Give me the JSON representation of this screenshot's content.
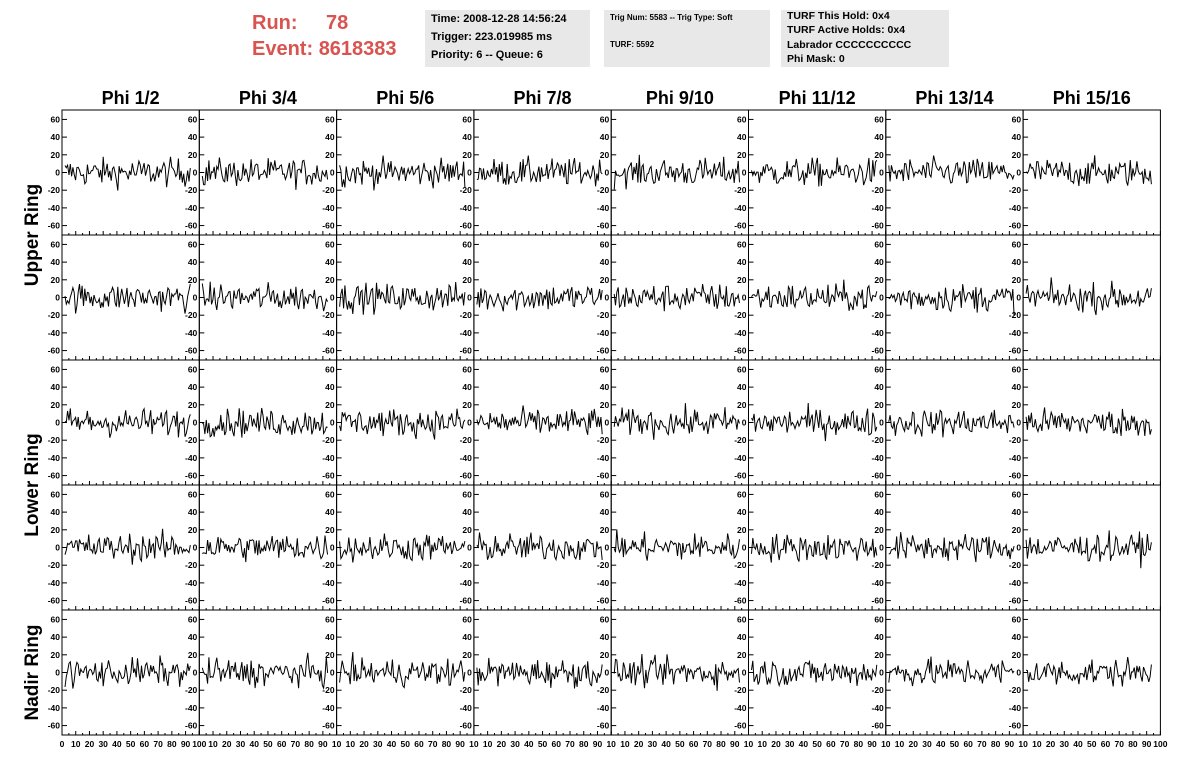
{
  "header": {
    "run_label": "Run:",
    "run_value": "78",
    "event_label": "Event:",
    "event_value": "8618383",
    "accent_color": "#d9534f",
    "box1": [
      "Time: 2008-12-28 14:56:24",
      "Trigger: 223.019985 ms",
      "Priority: 6 -- Queue: 6"
    ],
    "box2": [
      "Trig Num: 5583 -- Trig Type: Soft",
      "TURF: 5592"
    ],
    "box3": [
      "TURF This Hold: 0x4",
      "TURF Active Holds: 0x4",
      "Labrador CCCCCCCCCC",
      "Phi Mask: 0"
    ]
  },
  "chart_data": {
    "type": "line",
    "columns": [
      "Phi 1/2",
      "Phi 3/4",
      "Phi 5/6",
      "Phi 7/8",
      "Phi 9/10",
      "Phi 11/12",
      "Phi 13/14",
      "Phi 15/16"
    ],
    "row_groups": [
      {
        "label": "Upper Ring",
        "rows": 2
      },
      {
        "label": "Lower Ring",
        "rows": 2
      },
      {
        "label": "Nadir Ring",
        "rows": 1
      }
    ],
    "xlim": [
      0,
      100
    ],
    "ylim": [
      -65,
      65
    ],
    "y_ticks": [
      "60",
      "40",
      "20",
      "0",
      "-20",
      "-40",
      "-60"
    ],
    "x_ticks_first": [
      "0",
      "10",
      "20",
      "30",
      "40",
      "50",
      "60",
      "70",
      "80",
      "90",
      "100"
    ],
    "x_ticks_middle": [
      "0",
      "10",
      "20",
      "30",
      "40",
      "50",
      "60",
      "70",
      "80",
      "90",
      "10"
    ],
    "x_ticks_last": [
      "0",
      "10",
      "20",
      "30",
      "40",
      "50",
      "60",
      "70",
      "80",
      "90",
      "100"
    ],
    "waveform_samples": 96,
    "waveform_amplitude": 20,
    "grid": false,
    "line_color": "#000000"
  }
}
